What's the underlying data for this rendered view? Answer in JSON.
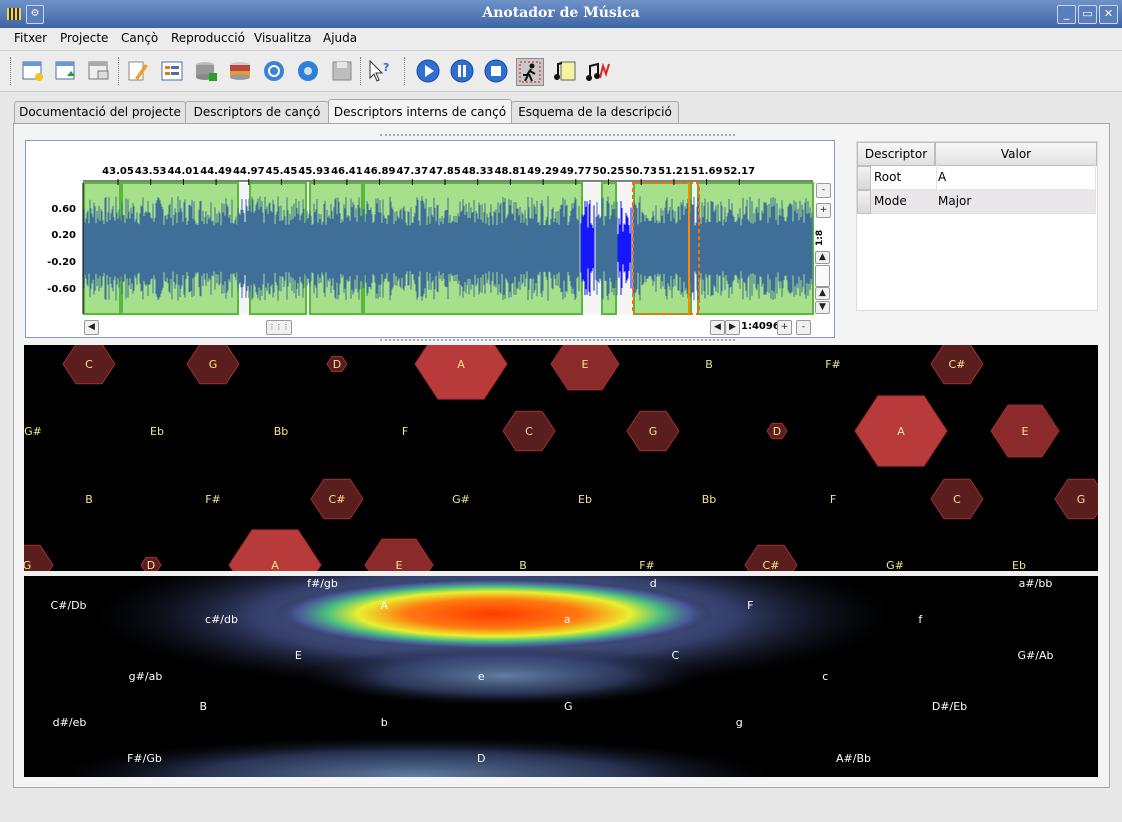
{
  "window": {
    "title": "Anotador de Música",
    "buttons": [
      "_",
      "▭",
      "✕"
    ]
  },
  "menu": [
    "Fitxer",
    "Projecte",
    "Cançò",
    "Reproducció",
    "Visualitza",
    "Ajuda"
  ],
  "toolbar": {
    "icons": [
      "new-project-icon",
      "open-project-icon",
      "close-project-icon",
      "edit-icon",
      "list-icon",
      "database-add-icon",
      "database-icon",
      "refresh-icon",
      "settings-icon",
      "save-icon",
      "whats-this-icon",
      "play-icon",
      "pause-icon",
      "stop-icon",
      "follow-cursor-icon",
      "score-icon",
      "midi-icon"
    ],
    "play_color": "#2f6fd1"
  },
  "tabs": [
    {
      "label": "Documentació del projecte",
      "active": false
    },
    {
      "label": "Descriptors de cançó",
      "active": false
    },
    {
      "label": "Descriptors interns de cançó",
      "active": true
    },
    {
      "label": "Esquema de la descripció",
      "active": false
    }
  ],
  "waveform": {
    "time_ticks": [
      "43.05",
      "43.53",
      "44.01",
      "44.49",
      "44.97",
      "45.45",
      "45.93",
      "46.41",
      "46.89",
      "47.37",
      "47.85",
      "48.33",
      "48.81",
      "49.29",
      "49.77",
      "50.25",
      "50.73",
      "51.21",
      "51.69",
      "52.17"
    ],
    "amp_ticks": [
      "0.60",
      "0.20",
      "-0.20",
      "-0.60"
    ],
    "vertical_zoom": "1:8",
    "horizontal_zoom": "1:4096",
    "zoom_minus": "-",
    "zoom_plus": "+",
    "segment_color": "#a6e08a",
    "wave_color": "#3f6f98"
  },
  "descriptor_table": {
    "headers": [
      "Descriptor",
      "Valor"
    ],
    "rows": [
      {
        "descriptor": "Root",
        "value": "A"
      },
      {
        "descriptor": "Mode",
        "value": "Major"
      }
    ]
  },
  "tonnetz": {
    "hex_color": "#b83a3a",
    "rows": [
      [
        "C",
        "G",
        "D",
        "A",
        "E",
        "B",
        "F#",
        "C#"
      ],
      [
        "G#",
        "Eb",
        "Bb",
        "F",
        "C",
        "G",
        "D",
        "A",
        "E"
      ],
      [
        "B",
        "F#",
        "C#",
        "G#",
        "Eb",
        "Bb",
        "F",
        "C",
        "G"
      ],
      [
        "G",
        "D",
        "A",
        "E",
        "B",
        "F#",
        "C#",
        "G#",
        "Eb"
      ]
    ]
  },
  "keyspace": {
    "labels": [
      "f#/gb",
      "d",
      "a#/bb",
      "C#/Db",
      "A",
      "F",
      "c#/db",
      "a",
      "f",
      "E",
      "C",
      "G#/Ab",
      "g#/ab",
      "e",
      "c",
      "B",
      "G",
      "D#/Eb",
      "d#/eb",
      "b",
      "g",
      "F#/Gb",
      "D",
      "A#/Bb"
    ]
  }
}
